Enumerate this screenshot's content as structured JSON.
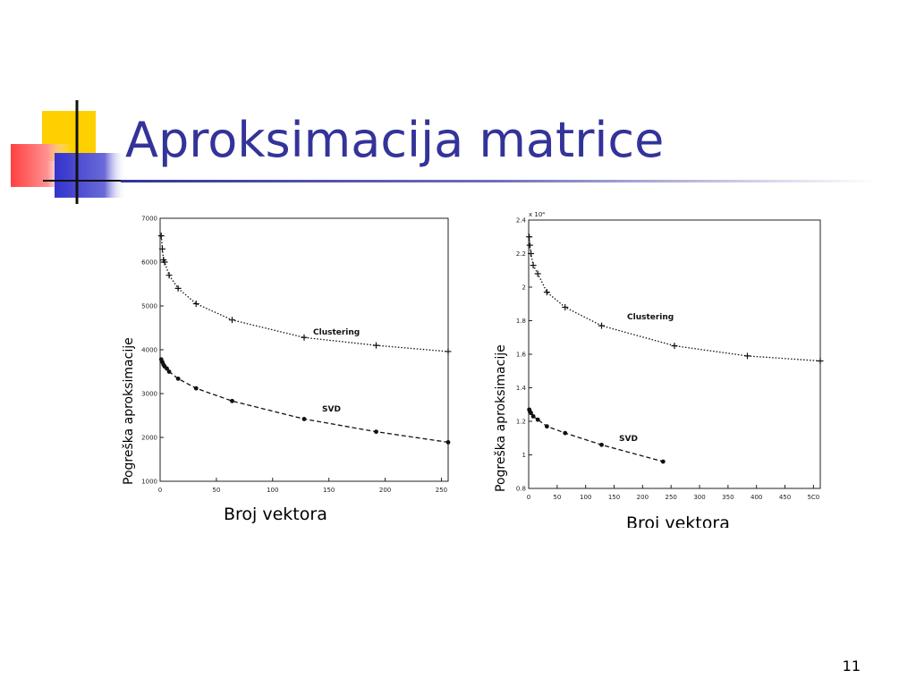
{
  "slide": {
    "title": "Aproksimacija matrice",
    "page_number": "11",
    "accent_color": "#333399"
  },
  "figures": {
    "left_ylabel": "Pogreška aproksimacije",
    "left_xlabel": "Broj vektora",
    "right_ylabel": "Pogreška aproksimacije",
    "right_xlabel": "Broj vektora"
  },
  "chart_data": [
    {
      "type": "line",
      "xlim": [
        0,
        256
      ],
      "ylim": [
        1000,
        7000
      ],
      "xticks": [
        0,
        50,
        100,
        150,
        200,
        250
      ],
      "yticks": [
        1000,
        2000,
        3000,
        4000,
        5000,
        6000,
        7000
      ],
      "exponent_label": "",
      "series": [
        {
          "name": "Clustering",
          "color": "#111111",
          "dash": "dotted",
          "x": [
            1,
            2,
            3,
            4,
            8,
            16,
            32,
            64,
            128,
            192,
            256
          ],
          "y": [
            6600,
            6300,
            6050,
            6000,
            5700,
            5400,
            5050,
            4680,
            4280,
            4100,
            3960
          ]
        },
        {
          "name": "SVD",
          "color": "#111111",
          "dash": "dashed",
          "x": [
            1,
            2,
            3,
            4,
            6,
            8,
            16,
            32,
            64,
            128,
            192,
            256
          ],
          "y": [
            3780,
            3720,
            3660,
            3620,
            3570,
            3500,
            3340,
            3120,
            2830,
            2420,
            2130,
            1890
          ]
        }
      ]
    },
    {
      "type": "line",
      "xlim": [
        0,
        512
      ],
      "ylim": [
        0.8,
        2.4
      ],
      "xticks": [
        0,
        50,
        100,
        150,
        200,
        250,
        300,
        350,
        400,
        450,
        500
      ],
      "xtick_labels": [
        "0",
        "50",
        "100",
        "150",
        "200",
        "250",
        "300",
        "350",
        "400",
        "450",
        "5C0"
      ],
      "yticks": [
        0.8,
        1,
        1.2,
        1.4,
        1.6,
        1.8,
        2,
        2.2,
        2.4
      ],
      "exponent_label": "x 10⁴",
      "series": [
        {
          "name": "Clustering",
          "color": "#111111",
          "dash": "dotted",
          "x": [
            1,
            2,
            4,
            8,
            16,
            32,
            64,
            128,
            256,
            384,
            512
          ],
          "y": [
            2.3,
            2.25,
            2.2,
            2.13,
            2.08,
            1.97,
            1.88,
            1.77,
            1.65,
            1.59,
            1.56
          ]
        },
        {
          "name": "SVD",
          "color": "#111111",
          "dash": "dashed",
          "x": [
            1,
            2,
            4,
            8,
            16,
            32,
            64,
            128,
            236
          ],
          "y": [
            1.27,
            1.26,
            1.25,
            1.23,
            1.21,
            1.17,
            1.13,
            1.06,
            0.96
          ]
        }
      ]
    }
  ]
}
